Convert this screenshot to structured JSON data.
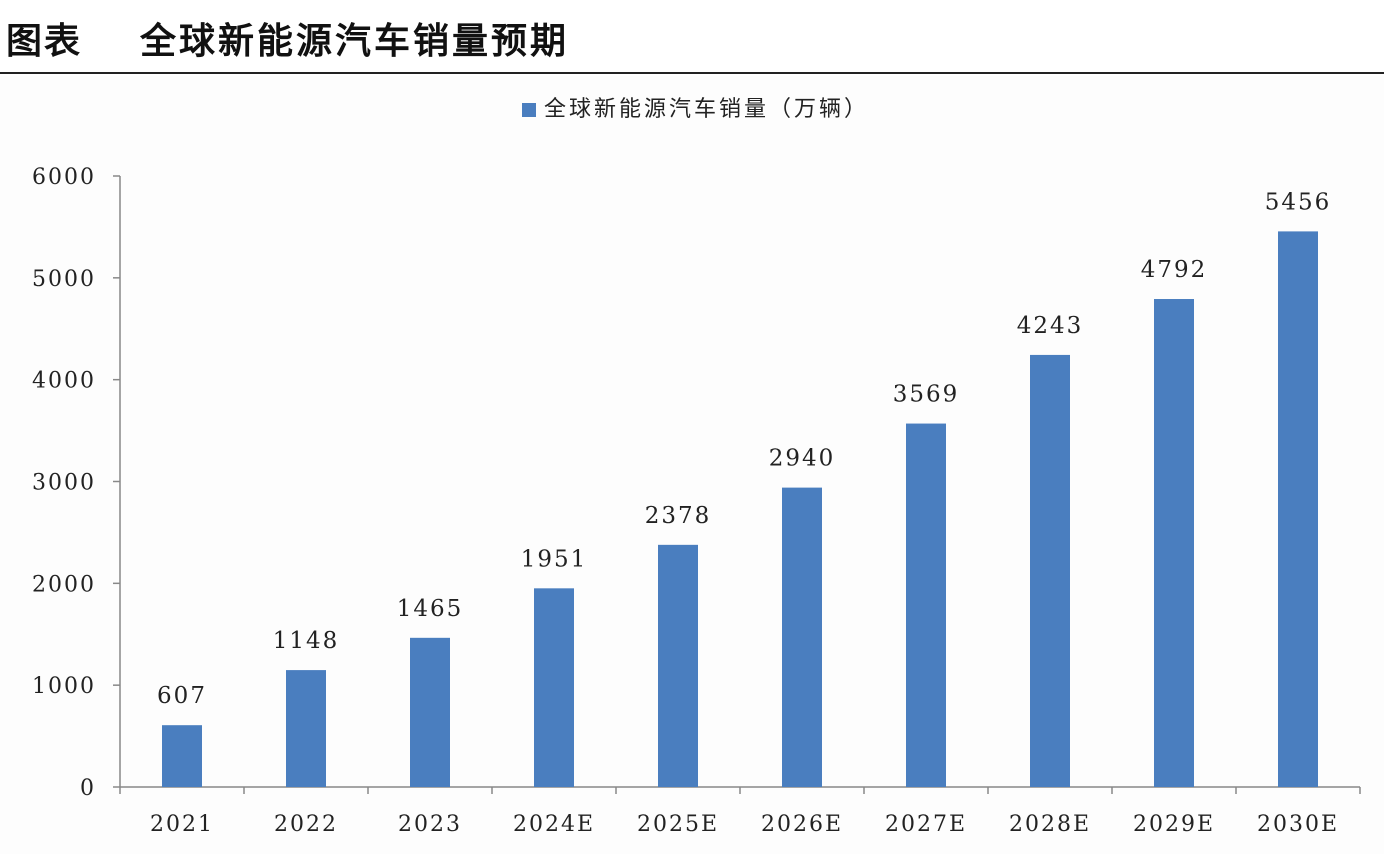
{
  "header": {
    "label": "图表",
    "title": "全球新能源汽车销量预期"
  },
  "colors": {
    "bar": "#4a7ebf",
    "axis": "#888888",
    "text": "#222222"
  },
  "chart_data": {
    "type": "bar",
    "title": "",
    "xlabel": "",
    "ylabel": "",
    "legend": {
      "position": "top-center",
      "entries": [
        "全球新能源汽车销量（万辆）"
      ]
    },
    "categories": [
      "2021",
      "2022",
      "2023",
      "2024E",
      "2025E",
      "2026E",
      "2027E",
      "2028E",
      "2029E",
      "2030E"
    ],
    "series": [
      {
        "name": "全球新能源汽车销量（万辆）",
        "values": [
          607,
          1148,
          1465,
          1951,
          2378,
          2940,
          3569,
          4243,
          4792,
          5456
        ],
        "data_labels": [
          "607",
          "1148",
          "1465",
          "1951",
          "2378",
          "2940",
          "3569",
          "4243",
          "4792",
          "5456"
        ]
      }
    ],
    "ylim": [
      0,
      6000
    ],
    "yticks": [
      0,
      1000,
      2000,
      3000,
      4000,
      5000,
      6000
    ],
    "ytick_labels": [
      "0",
      "1000",
      "2000",
      "3000",
      "4000",
      "5000",
      "6000"
    ],
    "grid": false
  }
}
